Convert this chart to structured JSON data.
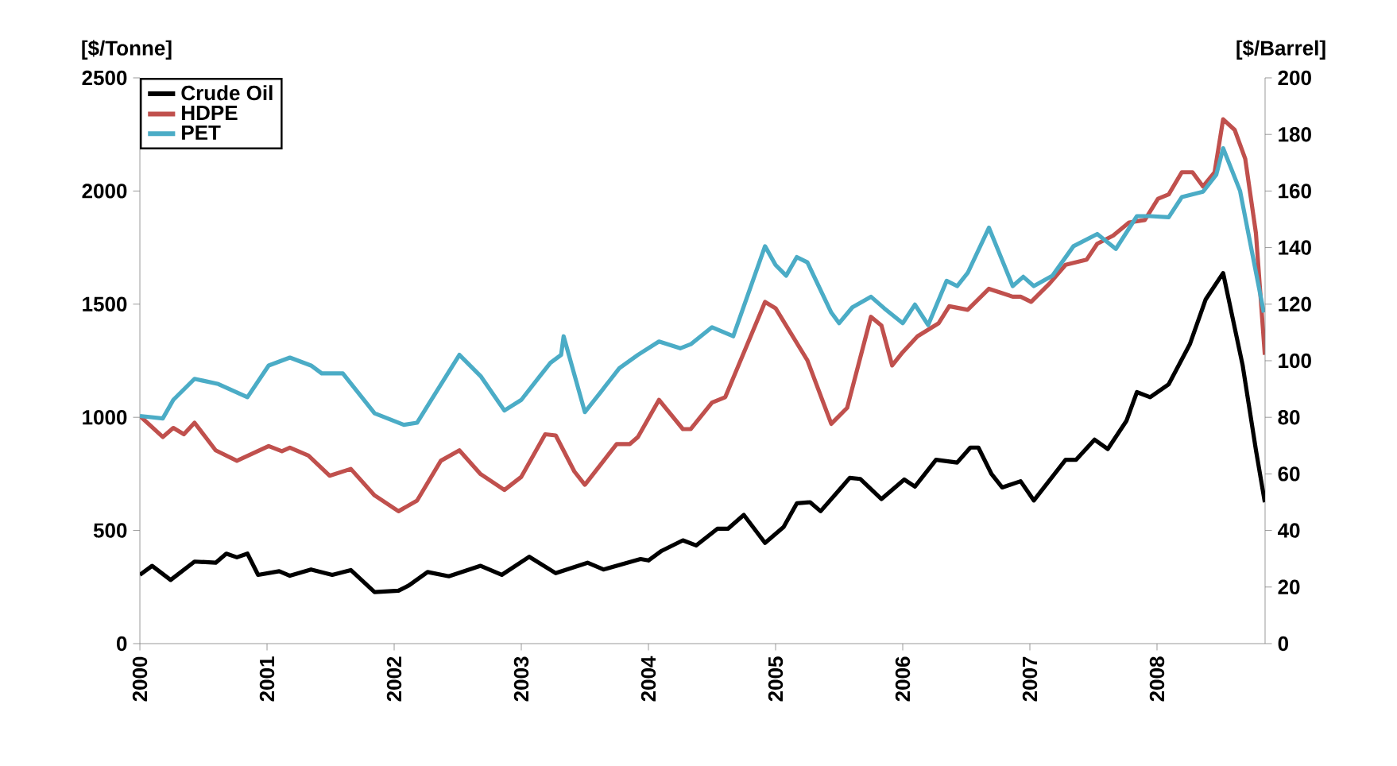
{
  "chart_data": {
    "type": "line",
    "ylabel": "[$/Tonne]",
    "y2label": "[$/Barrel]",
    "xlim": [
      2000,
      2008.85
    ],
    "xticks": [
      2000,
      2001,
      2002,
      2003,
      2004,
      2005,
      2006,
      2007,
      2008
    ],
    "ylim": [
      0,
      2500
    ],
    "yticks": [
      0,
      500,
      1000,
      1500,
      2000,
      2500
    ],
    "y2lim": [
      0,
      200
    ],
    "y2ticks": [
      0,
      20,
      40,
      60,
      80,
      100,
      120,
      140,
      160,
      180,
      200
    ],
    "legend": "top left",
    "grid": false,
    "marker": "none",
    "line_style": "solid",
    "series": [
      {
        "name": "Crude Oil",
        "color": "#000000",
        "axis": "y2",
        "x": [
          2000.0,
          2000.096,
          2000.242,
          2000.43,
          2000.596,
          2000.68,
          2000.763,
          2000.846,
          2000.93,
          2001.096,
          2001.18,
          2001.346,
          2001.513,
          2001.659,
          2001.846,
          2002.034,
          2002.117,
          2002.263,
          2002.43,
          2002.68,
          2002.846,
          2003.063,
          2003.271,
          2003.521,
          2003.646,
          2003.833,
          2003.938,
          2004.0,
          2004.104,
          2004.271,
          2004.375,
          2004.542,
          2004.625,
          2004.75,
          2004.917,
          2005.063,
          2005.167,
          2005.271,
          2005.354,
          2005.5,
          2005.583,
          2005.667,
          2005.833,
          2006.012,
          2006.096,
          2006.262,
          2006.428,
          2006.532,
          2006.595,
          2006.699,
          2006.782,
          2006.927,
          2007.031,
          2007.281,
          2007.364,
          2007.509,
          2007.613,
          2007.759,
          2007.842,
          2007.946,
          2008.092,
          2008.258,
          2008.383,
          2008.52,
          2008.674,
          2008.778,
          2008.848
        ],
        "values": [
          24.3,
          27.5,
          22.5,
          29,
          28.6,
          31.8,
          30.5,
          31.8,
          24.3,
          25.6,
          24,
          26.2,
          24.3,
          26,
          18.2,
          18.7,
          20.6,
          25.3,
          23.8,
          27.5,
          24.3,
          30.7,
          24.9,
          28.6,
          26.2,
          28.6,
          29.9,
          29.4,
          32.8,
          36.5,
          34.7,
          40.6,
          40.6,
          45.5,
          35.6,
          41.2,
          49.6,
          50,
          46.8,
          54.3,
          58.6,
          58.2,
          51.1,
          58,
          55.5,
          65,
          64,
          69.3,
          69.3,
          59.9,
          55.2,
          57.4,
          50.6,
          65,
          65,
          72.1,
          68.8,
          78.7,
          88.9,
          87.1,
          91.7,
          105.8,
          121.7,
          131,
          98.3,
          68.4,
          50
        ]
      },
      {
        "name": "HDPE",
        "color": "#c0504d",
        "x": [
          2000.0,
          2000.18,
          2000.263,
          2000.346,
          2000.43,
          2000.596,
          2000.763,
          2001.013,
          2001.117,
          2001.18,
          2001.326,
          2001.492,
          2001.659,
          2001.846,
          2002.034,
          2002.18,
          2002.367,
          2002.513,
          2002.68,
          2002.867,
          2003.0,
          2003.188,
          2003.271,
          2003.417,
          2003.5,
          2003.75,
          2003.854,
          2003.917,
          2004.083,
          2004.271,
          2004.333,
          2004.5,
          2004.604,
          2004.917,
          2005.0,
          2005.25,
          2005.438,
          2005.563,
          2005.75,
          2005.833,
          2005.917,
          2006.0,
          2006.116,
          2006.283,
          2006.366,
          2006.511,
          2006.678,
          2006.865,
          2006.927,
          2007.01,
          2007.156,
          2007.281,
          2007.447,
          2007.53,
          2007.655,
          2007.78,
          2007.904,
          2008.008,
          2008.092,
          2008.195,
          2008.279,
          2008.362,
          2008.453,
          2008.52,
          2008.611,
          2008.694,
          2008.778,
          2008.848
        ],
        "values": [
          1006,
          913,
          953,
          925,
          976,
          854,
          808,
          873,
          850,
          866,
          831,
          742,
          772,
          655,
          585,
          632,
          808,
          854,
          749,
          679,
          737,
          925,
          920,
          761,
          702,
          882,
          882,
          913,
          1077,
          948,
          948,
          1065,
          1089,
          1510,
          1482,
          1252,
          971,
          1042,
          1444,
          1405,
          1229,
          1288,
          1358,
          1416,
          1491,
          1475,
          1568,
          1533,
          1533,
          1510,
          1592,
          1674,
          1697,
          1767,
          1803,
          1861,
          1872,
          1966,
          1985,
          2083,
          2083,
          2020,
          2083,
          2317,
          2270,
          2142,
          1814,
          1276
        ]
      },
      {
        "name": "PET",
        "color": "#4bacc6",
        "x": [
          2000.0,
          2000.18,
          2000.263,
          2000.43,
          2000.617,
          2000.846,
          2001.013,
          2001.18,
          2001.346,
          2001.43,
          2001.596,
          2001.846,
          2002.076,
          2002.18,
          2002.513,
          2002.68,
          2002.867,
          2003.0,
          2003.146,
          2003.229,
          2003.313,
          2003.333,
          2003.5,
          2003.625,
          2003.771,
          2003.917,
          2004.083,
          2004.25,
          2004.333,
          2004.5,
          2004.667,
          2004.917,
          2005.0,
          2005.083,
          2005.167,
          2005.25,
          2005.438,
          2005.5,
          2005.604,
          2005.75,
          2005.854,
          2006.0,
          2006.096,
          2006.2,
          2006.345,
          2006.428,
          2006.511,
          2006.678,
          2006.865,
          2006.948,
          2007.031,
          2007.177,
          2007.343,
          2007.53,
          2007.676,
          2007.842,
          2007.946,
          2008.092,
          2008.195,
          2008.362,
          2008.466,
          2008.52,
          2008.653,
          2008.84
        ],
        "values": [
          1006,
          995,
          1077,
          1170,
          1147,
          1089,
          1229,
          1264,
          1229,
          1194,
          1194,
          1018,
          967,
          976,
          1276,
          1182,
          1030,
          1077,
          1182,
          1241,
          1276,
          1358,
          1023,
          1112,
          1217,
          1276,
          1335,
          1305,
          1323,
          1398,
          1358,
          1756,
          1673,
          1626,
          1708,
          1685,
          1463,
          1416,
          1486,
          1533,
          1482,
          1416,
          1498,
          1408,
          1603,
          1580,
          1638,
          1838,
          1580,
          1621,
          1580,
          1626,
          1756,
          1810,
          1744,
          1889,
          1889,
          1884,
          1973,
          1997,
          2072,
          2189,
          2001,
          1463
        ]
      }
    ]
  }
}
